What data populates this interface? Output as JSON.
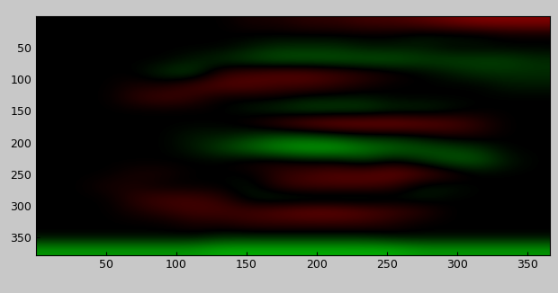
{
  "chart_data": {
    "type": "heatmap",
    "xlim": [
      0.5,
      365.5
    ],
    "ylim": [
      377.5,
      0.5
    ],
    "xticks": [
      50,
      100,
      150,
      200,
      250,
      300,
      350
    ],
    "yticks": [
      50,
      100,
      150,
      200,
      250,
      300,
      350
    ],
    "color_range": [
      -1,
      1
    ],
    "cells": [
      [
        0,
        0,
        0,
        0,
        0,
        0,
        0,
        0.1,
        0.1,
        0.2,
        0.2,
        0.3,
        0.3,
        0.4,
        0.5,
        0.6,
        0.6,
        0.6
      ],
      [
        0,
        0,
        0,
        0,
        0,
        0,
        0,
        0,
        0,
        0,
        0,
        0,
        0,
        -0.1,
        -0.1,
        -0.1,
        0,
        0
      ],
      [
        0,
        0,
        0,
        0,
        0,
        0,
        0,
        -0.1,
        -0.2,
        -0.2,
        -0.2,
        -0.1,
        -0.1,
        -0.1,
        0,
        0,
        0,
        0
      ],
      [
        0,
        0,
        0,
        0,
        0,
        -0.1,
        -0.2,
        -0.3,
        -0.4,
        -0.4,
        -0.4,
        -0.4,
        -0.4,
        -0.3,
        -0.3,
        -0.3,
        -0.3,
        -0.2
      ],
      [
        0,
        0,
        0,
        0,
        -0.2,
        -0.3,
        0.2,
        0.3,
        0.4,
        0.4,
        0.3,
        0.2,
        0.1,
        0,
        -0.1,
        -0.2,
        -0.2,
        -0.2
      ],
      [
        0,
        0,
        0,
        0.1,
        0.1,
        0.3,
        0.4,
        0.4,
        0.3,
        0.3,
        0.2,
        0.1,
        0,
        0,
        0,
        0,
        -0.1,
        -0.1
      ],
      [
        0,
        0,
        0,
        0.2,
        0.3,
        0.2,
        0,
        0,
        0,
        -0.1,
        -0.1,
        -0.1,
        0,
        0,
        0,
        0,
        0,
        0
      ],
      [
        0,
        0,
        0,
        0,
        0,
        0,
        0,
        -0.1,
        -0.2,
        -0.3,
        -0.3,
        -0.3,
        -0.2,
        -0.2,
        -0.1,
        0,
        0,
        0
      ],
      [
        0,
        0,
        0,
        0,
        0,
        0,
        0,
        0.1,
        0.3,
        0.5,
        0.6,
        0.6,
        0.6,
        0.5,
        0.4,
        0.2,
        0,
        0
      ],
      [
        0,
        0,
        0,
        0,
        0,
        -0.1,
        -0.1,
        -0.2,
        -0.3,
        -0.3,
        -0.2,
        -0.1,
        -0.1,
        0,
        0.1,
        0.1,
        0,
        0
      ],
      [
        0,
        0,
        0,
        0,
        0,
        -0.1,
        -0.3,
        -0.5,
        -0.7,
        -0.8,
        -0.8,
        -0.6,
        -0.5,
        -0.4,
        -0.3,
        -0.2,
        0,
        0
      ],
      [
        0,
        0,
        0,
        0,
        0,
        0,
        0,
        0.1,
        0.1,
        0,
        0,
        -0.2,
        0,
        -0.2,
        -0.4,
        -0.4,
        -0.1,
        0
      ],
      [
        0,
        0,
        0,
        0.1,
        0.1,
        0,
        0,
        0,
        0.2,
        0.3,
        0.4,
        0.4,
        0.5,
        0.4,
        0.2,
        0,
        0,
        0
      ],
      [
        0,
        0,
        0.1,
        0.1,
        0,
        0,
        0,
        -0.1,
        0.2,
        0.3,
        0.3,
        0.3,
        0.2,
        -0.1,
        -0.1,
        0,
        0,
        0
      ],
      [
        0,
        0,
        0,
        0.2,
        0.3,
        0.3,
        0.2,
        -0.1,
        -0.2,
        -0.2,
        -0.2,
        -0.2,
        -0.1,
        -0.1,
        0,
        0,
        0,
        0
      ],
      [
        0,
        0,
        0,
        0.1,
        0.2,
        0.3,
        0.3,
        0.3,
        0.4,
        0.5,
        0.5,
        0.4,
        0.3,
        0.2,
        0,
        0,
        0,
        0
      ],
      [
        0,
        0,
        0,
        0,
        0,
        0.1,
        0.1,
        0.2,
        0.2,
        0.2,
        0.2,
        0.2,
        0.1,
        0,
        0,
        0,
        0,
        0
      ],
      [
        0,
        0,
        0,
        0,
        0,
        0,
        -0.1,
        -0.1,
        -0.1,
        -0.1,
        -0.1,
        -0.1,
        0,
        0,
        0,
        0,
        0,
        0
      ],
      [
        -0.7,
        -0.7,
        -0.7,
        -0.7,
        -0.7,
        -0.7,
        -0.8,
        -0.8,
        -0.8,
        -0.8,
        -0.8,
        -0.8,
        -0.8,
        -0.7,
        -0.7,
        -0.7,
        -0.7,
        -0.7
      ]
    ]
  }
}
